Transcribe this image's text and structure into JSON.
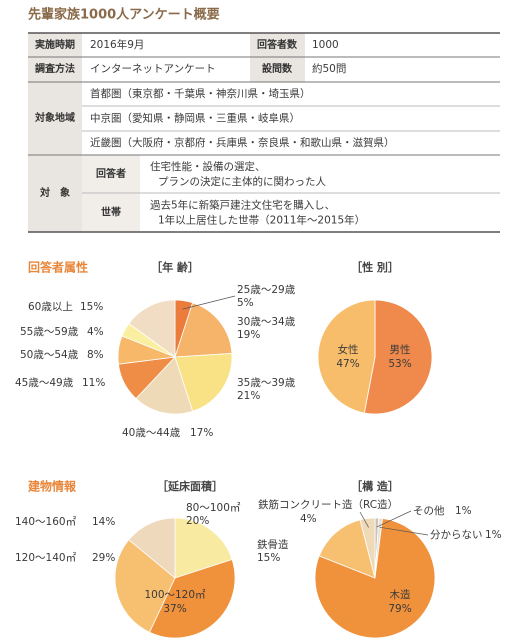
{
  "header": {
    "title": "先輩家族1000人アンケート概要"
  },
  "table": {
    "rows": [
      [
        "実施時期",
        "2016年9月",
        "回答者数",
        "1000"
      ],
      [
        "調査方法",
        "インターネットアンケート",
        "設問数",
        "約50問"
      ]
    ],
    "region": {
      "label": "対象地域",
      "items": [
        "首都圏（東京都・千葉県・神奈川県・埼玉県）",
        "中京圏（愛知県・静岡県・三重県・岐阜県）",
        "近畿圏（大阪府・京都府・兵庫県・奈良県・和歌山県・滋賀県）"
      ]
    },
    "target": {
      "label": "対　象",
      "rows": [
        [
          "回答者",
          "住宅性能・設備の選定、",
          "プランの決定に主体的に関わった人"
        ],
        [
          "世帯",
          "過去5年に新築戸建注文住宅を購入し、",
          "1年以上居住した世帯（2011年～2015年）"
        ]
      ]
    }
  },
  "sections": [
    {
      "title": "回答者属性",
      "charts": [
        {
          "type": "pie",
          "title": "［年 齢］",
          "categories": [
            "25歳～29歳",
            "30歳～34歳",
            "35歳～39歳",
            "40歳～44歳",
            "45歳～49歳",
            "50歳～54歳",
            "55歳～59歳",
            "60歳以上"
          ],
          "values": [
            5,
            19,
            21,
            17,
            11,
            8,
            4,
            15
          ],
          "value_labels": [
            "5%",
            "19%",
            "21%",
            "17%",
            "11%",
            "8%",
            "4%",
            "15%"
          ],
          "colors": [
            "#ec7c3c",
            "#f6b46a",
            "#f8e285",
            "#efdab8",
            "#ef8c45",
            "#f7b86a",
            "#faefa0",
            "#f1dcc4"
          ]
        },
        {
          "type": "pie",
          "title": "［性 別］",
          "categories": [
            "男性",
            "女性"
          ],
          "values": [
            53,
            47
          ],
          "value_labels": [
            "53%",
            "47%"
          ],
          "colors": [
            "#ef8a4c",
            "#f8bd6a"
          ]
        }
      ]
    },
    {
      "title": "建物情報",
      "charts": [
        {
          "type": "pie",
          "title": "［延床面積］",
          "categories": [
            "80～100㎡",
            "100～120㎡",
            "120～140㎡",
            "140～160㎡"
          ],
          "values": [
            20,
            37,
            29,
            14
          ],
          "value_labels": [
            "20%",
            "37%",
            "29%",
            "14%"
          ],
          "colors": [
            "#f8eaa0",
            "#f0913c",
            "#f7c070",
            "#efd9bd"
          ]
        },
        {
          "type": "pie",
          "title": "［構 造］",
          "categories": [
            "その他",
            "分からない",
            "木造",
            "鉄骨造",
            "鉄筋コンクリート造（RC造）"
          ],
          "values": [
            1,
            1,
            79,
            15,
            4
          ],
          "value_labels": [
            "1%",
            "1%",
            "79%",
            "15%",
            "4%"
          ],
          "colors": [
            "#c9c2b8",
            "#e8e1d6",
            "#f0913c",
            "#f7c070",
            "#efdab8"
          ]
        }
      ]
    }
  ]
}
